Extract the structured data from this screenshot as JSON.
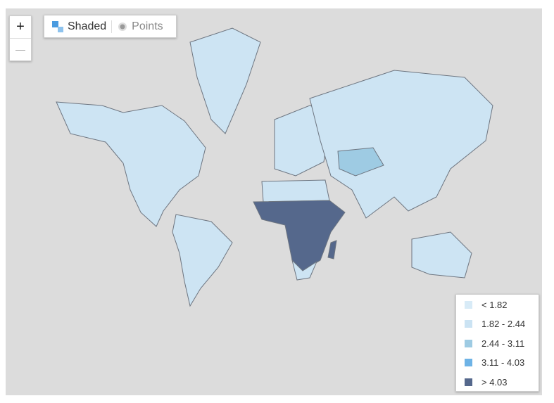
{
  "zoom": {
    "in": "+",
    "out": "—"
  },
  "toggle": {
    "shaded": "Shaded",
    "points": "Points"
  },
  "legend": {
    "items": [
      {
        "label": "< 1.82",
        "color": "#d8ebf7"
      },
      {
        "label": "1.82 - 2.44",
        "color": "#cbe3f3"
      },
      {
        "label": "2.44 - 3.11",
        "color": "#9ecbe3"
      },
      {
        "label": "3.11 - 4.03",
        "color": "#6eb3e6"
      },
      {
        "label": "> 4.03",
        "color": "#55688c"
      }
    ]
  }
}
